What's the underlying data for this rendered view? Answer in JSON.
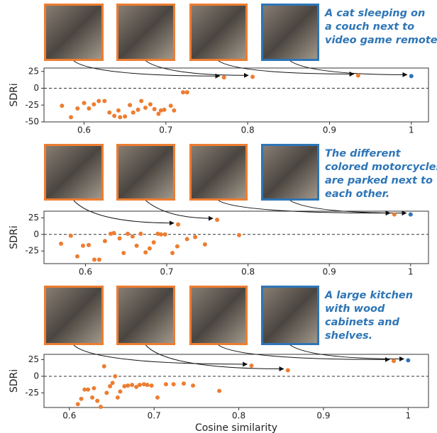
{
  "chart_data": [
    {
      "type": "scatter",
      "caption": [
        "A cat sleeping on",
        "a couch next to",
        "video game remotes."
      ],
      "y_label": "SDRi",
      "xlim": [
        0.551,
        1.021
      ],
      "ylim": [
        -50,
        30
      ],
      "xticks": [
        0.6,
        0.7,
        0.8,
        0.9,
        1.0
      ],
      "yticks": [
        25,
        0,
        -25,
        -50
      ],
      "reference_line": 0,
      "series": [
        {
          "color": "#ed7d31",
          "x": [
            0.573,
            0.584,
            0.592,
            0.6,
            0.606,
            0.612,
            0.618,
            0.625,
            0.631,
            0.637,
            0.642,
            0.644,
            0.65,
            0.656,
            0.66,
            0.666,
            0.67,
            0.675,
            0.681,
            0.686,
            0.691,
            0.694,
            0.698,
            0.706,
            0.71,
            0.721,
            0.726
          ],
          "values": [
            -26,
            -43,
            -30,
            -22,
            -30,
            -24,
            -19,
            -19,
            -36,
            -41,
            -33,
            -43,
            -42,
            -25,
            -36,
            -32,
            -19,
            -29,
            -24,
            -31,
            -38,
            -33,
            -32,
            -26,
            -33,
            -6,
            -6
          ]
        },
        {
          "color": "#ed7d31",
          "x": [
            0.771,
            0.806,
            0.935
          ],
          "values": [
            16,
            17,
            19
          ]
        },
        {
          "color": "#2e75b6",
          "x": [
            1.0
          ],
          "values": [
            18
          ]
        }
      ]
    },
    {
      "type": "scatter",
      "caption": [
        "The different",
        "colored motorcycles",
        "are parked next to",
        "each other."
      ],
      "y_label": "SDRi",
      "xlim": [
        0.549,
        1.022
      ],
      "ylim": [
        -44,
        35
      ],
      "xticks": [
        0.6,
        0.7,
        0.8,
        0.9,
        1.0
      ],
      "yticks": [
        25,
        0,
        -25
      ],
      "reference_line": 0,
      "series": [
        {
          "color": "#ed7d31",
          "x": [
            0.57,
            0.582,
            0.59,
            0.597,
            0.604,
            0.611,
            0.617,
            0.624,
            0.631,
            0.635,
            0.642,
            0.647,
            0.652,
            0.658,
            0.663,
            0.668,
            0.674,
            0.679,
            0.684,
            0.689,
            0.693,
            0.698,
            0.707,
            0.713,
            0.725,
            0.735,
            0.747,
            0.789
          ],
          "values": [
            -14,
            -2,
            -33,
            -17,
            -16,
            -38,
            -38,
            -10,
            1,
            2,
            -6,
            -28,
            1,
            -3,
            -17,
            1,
            -27,
            -21,
            -12,
            1,
            0,
            0,
            -28,
            -18,
            -7,
            -4,
            -15,
            -1
          ]
        },
        {
          "color": "#ed7d31",
          "x": [
            0.714,
            0.762,
            0.98
          ],
          "values": [
            15,
            22,
            30
          ]
        },
        {
          "color": "#2e75b6",
          "x": [
            1.0
          ],
          "values": [
            30
          ]
        }
      ]
    },
    {
      "type": "scatter",
      "caption": [
        "A large kitchen",
        "with wood",
        "cabinets and",
        "shelves."
      ],
      "y_label": "SDRi",
      "x_label": "Cosine similarity",
      "xlim": [
        0.57,
        1.024
      ],
      "ylim": [
        -47,
        33
      ],
      "xticks": [
        0.6,
        0.7,
        0.8,
        0.9,
        1.0
      ],
      "yticks": [
        25,
        0,
        -25
      ],
      "reference_line": 0,
      "series": [
        {
          "color": "#ed7d31",
          "x": [
            0.61,
            0.614,
            0.618,
            0.622,
            0.627,
            0.629,
            0.633,
            0.637,
            0.641,
            0.644,
            0.648,
            0.651,
            0.654,
            0.657,
            0.66,
            0.665,
            0.669,
            0.674,
            0.679,
            0.683,
            0.688,
            0.692,
            0.697,
            0.704,
            0.714,
            0.723,
            0.735,
            0.746,
            0.777
          ],
          "values": [
            -42,
            -34,
            -20,
            -20,
            -32,
            -18,
            -37,
            -46,
            15,
            -25,
            -15,
            -10,
            0,
            -32,
            -23,
            -15,
            -14,
            -13,
            -16,
            -13,
            -12,
            -13,
            -14,
            -32,
            -12,
            -12,
            -11,
            -14,
            -22
          ]
        },
        {
          "color": "#ed7d31",
          "x": [
            0.815,
            0.858,
            0.983
          ],
          "values": [
            16,
            9,
            23
          ]
        },
        {
          "color": "#2e75b6",
          "x": [
            1.0
          ],
          "values": [
            24
          ]
        }
      ]
    }
  ]
}
